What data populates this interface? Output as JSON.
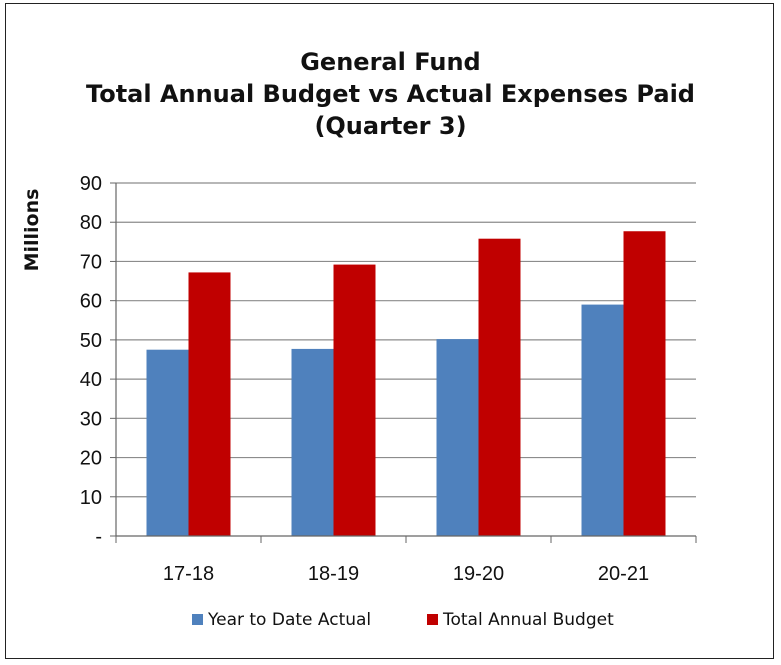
{
  "chart_data": {
    "type": "bar",
    "title_lines": [
      "General Fund",
      "Total Annual Budget vs Actual Expenses Paid",
      "(Quarter 3)"
    ],
    "ylabel": "Millions",
    "xlabel": "",
    "ylim": [
      0,
      90
    ],
    "yticks": [
      0,
      10,
      20,
      30,
      40,
      50,
      60,
      70,
      80,
      90
    ],
    "ytick_labels": [
      "-",
      "10",
      "20",
      "30",
      "40",
      "50",
      "60",
      "70",
      "80",
      "90"
    ],
    "categories": [
      "17-18",
      "18-19",
      "19-20",
      "20-21"
    ],
    "series": [
      {
        "name": "Year to Date Actual",
        "color": "#4F81BD",
        "values": [
          47.5,
          47.7,
          50.2,
          59.0
        ]
      },
      {
        "name": "Total Annual Budget",
        "color": "#C00000",
        "values": [
          67.2,
          69.2,
          75.8,
          77.7
        ]
      }
    ],
    "grid": true,
    "legend_position": "bottom"
  }
}
